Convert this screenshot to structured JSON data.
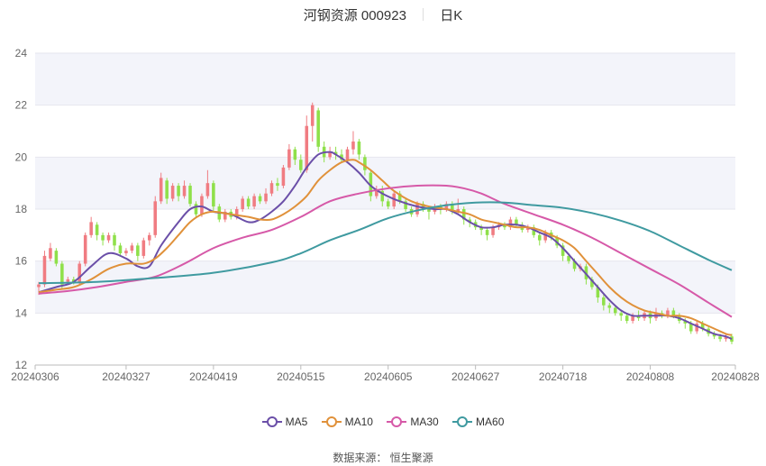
{
  "title": {
    "stock": "河钢资源 000923",
    "period": "日K"
  },
  "source": "数据来源： 恒生聚源",
  "colors": {
    "up": "#f07c82",
    "down": "#8fe04a",
    "ma5": "#6b4fa8",
    "ma10": "#e0913a",
    "ma30": "#d659a8",
    "ma60": "#3f9aa0",
    "plot_bg": "#f3f4fa"
  },
  "chart_data": {
    "type": "candlestick",
    "x_tick_labels": [
      "20240306",
      "20240327",
      "20240419",
      "20240515",
      "20240605",
      "20240627",
      "20240718",
      "20240808",
      "20240828"
    ],
    "x_tick_index": [
      0,
      15,
      30,
      45,
      60,
      75,
      90,
      105,
      119
    ],
    "n_days": 120,
    "ylim": [
      12,
      24
    ],
    "y_ticks": [
      12,
      14,
      16,
      18,
      20,
      22,
      24
    ],
    "legend": [
      "MA5",
      "MA10",
      "MA30",
      "MA60"
    ],
    "candles": [
      [
        15.0,
        15.1,
        14.7,
        15.2
      ],
      [
        15.1,
        16.2,
        15.0,
        16.4
      ],
      [
        16.1,
        16.5,
        16.0,
        16.7
      ],
      [
        16.4,
        15.9,
        15.8,
        16.5
      ],
      [
        15.9,
        15.1,
        14.9,
        16.0
      ],
      [
        15.2,
        15.3,
        15.1,
        15.4
      ],
      [
        15.3,
        15.2,
        15.1,
        15.4
      ],
      [
        15.2,
        15.9,
        15.1,
        16.0
      ],
      [
        15.9,
        17.0,
        15.8,
        17.1
      ],
      [
        17.0,
        17.5,
        16.9,
        17.7
      ],
      [
        17.4,
        17.0,
        16.8,
        17.5
      ],
      [
        17.0,
        16.8,
        16.6,
        17.1
      ],
      [
        16.8,
        17.0,
        16.7,
        17.1
      ],
      [
        17.0,
        16.6,
        16.4,
        17.1
      ],
      [
        16.6,
        16.3,
        16.2,
        16.7
      ],
      [
        16.3,
        16.4,
        16.2,
        16.5
      ],
      [
        16.4,
        16.6,
        16.3,
        16.7
      ],
      [
        16.6,
        16.2,
        16.0,
        16.7
      ],
      [
        16.2,
        16.8,
        16.1,
        16.9
      ],
      [
        16.8,
        17.0,
        16.6,
        17.1
      ],
      [
        17.0,
        18.3,
        16.9,
        18.5
      ],
      [
        18.3,
        19.2,
        18.2,
        19.4
      ],
      [
        19.1,
        18.4,
        18.2,
        19.2
      ],
      [
        18.4,
        18.9,
        18.3,
        19.0
      ],
      [
        18.9,
        18.5,
        18.3,
        19.0
      ],
      [
        18.5,
        18.9,
        18.4,
        19.1
      ],
      [
        18.9,
        18.2,
        18.1,
        19.0
      ],
      [
        18.2,
        17.8,
        17.7,
        18.3
      ],
      [
        17.8,
        18.5,
        17.7,
        18.6
      ],
      [
        18.5,
        19.0,
        18.4,
        19.5
      ],
      [
        19.0,
        18.1,
        17.9,
        19.1
      ],
      [
        18.1,
        17.6,
        17.5,
        18.2
      ],
      [
        17.6,
        17.9,
        17.5,
        18.0
      ],
      [
        17.9,
        17.7,
        17.6,
        18.0
      ],
      [
        17.7,
        18.0,
        17.6,
        18.1
      ],
      [
        18.0,
        18.4,
        17.9,
        18.5
      ],
      [
        18.4,
        18.1,
        18.0,
        18.5
      ],
      [
        18.1,
        18.5,
        18.0,
        18.6
      ],
      [
        18.5,
        18.3,
        18.2,
        18.6
      ],
      [
        18.3,
        18.6,
        18.2,
        18.8
      ],
      [
        18.6,
        19.0,
        18.5,
        19.1
      ],
      [
        19.0,
        18.9,
        18.7,
        19.2
      ],
      [
        18.9,
        19.6,
        18.8,
        19.7
      ],
      [
        19.6,
        20.3,
        19.5,
        20.5
      ],
      [
        20.3,
        19.9,
        19.7,
        20.4
      ],
      [
        19.9,
        19.5,
        19.4,
        20.1
      ],
      [
        19.5,
        21.2,
        19.4,
        21.6
      ],
      [
        21.2,
        22.0,
        20.6,
        22.1
      ],
      [
        21.8,
        20.4,
        20.2,
        21.9
      ],
      [
        20.4,
        20.0,
        19.8,
        20.6
      ],
      [
        20.0,
        20.2,
        19.9,
        20.4
      ],
      [
        20.2,
        20.1,
        19.9,
        20.4
      ],
      [
        20.1,
        19.9,
        19.8,
        20.3
      ],
      [
        19.9,
        20.3,
        19.8,
        20.4
      ],
      [
        20.3,
        20.6,
        20.1,
        21.0
      ],
      [
        20.6,
        20.1,
        19.9,
        20.7
      ],
      [
        20.0,
        19.5,
        19.3,
        20.1
      ],
      [
        19.4,
        18.5,
        18.3,
        19.5
      ],
      [
        18.5,
        18.7,
        18.4,
        18.9
      ],
      [
        18.7,
        18.3,
        18.1,
        18.9
      ],
      [
        18.3,
        18.1,
        18.0,
        18.4
      ],
      [
        18.1,
        18.6,
        18.0,
        18.7
      ],
      [
        18.6,
        18.3,
        18.2,
        18.7
      ],
      [
        18.3,
        18.0,
        17.9,
        18.4
      ],
      [
        18.0,
        17.8,
        17.7,
        18.1
      ],
      [
        17.8,
        18.2,
        17.7,
        18.3
      ],
      [
        18.2,
        18.0,
        17.9,
        18.3
      ],
      [
        18.0,
        17.9,
        17.6,
        18.1
      ],
      [
        17.9,
        18.1,
        17.8,
        18.2
      ],
      [
        18.1,
        18.0,
        17.8,
        18.2
      ],
      [
        18.0,
        18.2,
        17.9,
        18.3
      ],
      [
        18.2,
        17.9,
        17.8,
        18.3
      ],
      [
        17.9,
        18.0,
        17.8,
        18.4
      ],
      [
        18.0,
        17.6,
        17.4,
        18.1
      ],
      [
        17.6,
        17.5,
        17.3,
        17.7
      ],
      [
        17.5,
        17.3,
        17.2,
        17.6
      ],
      [
        17.3,
        17.2,
        17.0,
        17.4
      ],
      [
        17.2,
        17.0,
        16.8,
        17.3
      ],
      [
        17.0,
        17.3,
        16.9,
        17.4
      ],
      [
        17.3,
        17.4,
        17.2,
        17.5
      ],
      [
        17.4,
        17.3,
        17.2,
        17.5
      ],
      [
        17.3,
        17.6,
        17.2,
        17.7
      ],
      [
        17.6,
        17.4,
        17.3,
        17.7
      ],
      [
        17.4,
        17.2,
        17.1,
        17.5
      ],
      [
        17.2,
        17.3,
        17.1,
        17.4
      ],
      [
        17.3,
        17.0,
        16.9,
        17.4
      ],
      [
        17.0,
        16.8,
        16.6,
        17.1
      ],
      [
        16.8,
        17.1,
        16.7,
        17.2
      ],
      [
        17.1,
        16.9,
        16.8,
        17.2
      ],
      [
        16.9,
        16.6,
        16.5,
        17.0
      ],
      [
        16.6,
        16.2,
        16.0,
        16.7
      ],
      [
        16.2,
        16.0,
        15.9,
        16.3
      ],
      [
        16.0,
        15.7,
        15.6,
        16.1
      ],
      [
        15.7,
        15.8,
        15.6,
        15.9
      ],
      [
        15.8,
        15.3,
        15.1,
        15.9
      ],
      [
        15.3,
        15.0,
        14.9,
        15.4
      ],
      [
        15.0,
        14.6,
        14.4,
        15.1
      ],
      [
        14.6,
        14.3,
        14.1,
        14.7
      ],
      [
        14.3,
        14.2,
        14.0,
        14.4
      ],
      [
        14.2,
        14.0,
        13.9,
        14.3
      ],
      [
        14.0,
        13.9,
        13.7,
        14.1
      ],
      [
        13.9,
        13.7,
        13.6,
        14.0
      ],
      [
        13.7,
        13.9,
        13.6,
        14.0
      ],
      [
        13.9,
        13.8,
        13.7,
        14.1
      ],
      [
        13.8,
        14.0,
        13.7,
        14.1
      ],
      [
        14.0,
        13.8,
        13.6,
        14.1
      ],
      [
        13.8,
        14.0,
        13.7,
        14.2
      ],
      [
        14.0,
        13.9,
        13.8,
        14.1
      ],
      [
        13.9,
        14.1,
        13.8,
        14.2
      ],
      [
        14.1,
        13.9,
        13.8,
        14.2
      ],
      [
        13.9,
        13.7,
        13.6,
        14.0
      ],
      [
        13.7,
        13.6,
        13.4,
        13.8
      ],
      [
        13.6,
        13.3,
        13.2,
        13.7
      ],
      [
        13.3,
        13.6,
        13.2,
        13.7
      ],
      [
        13.6,
        13.4,
        13.3,
        13.7
      ],
      [
        13.4,
        13.2,
        13.1,
        13.5
      ],
      [
        13.2,
        13.1,
        13.0,
        13.3
      ],
      [
        13.1,
        13.0,
        12.9,
        13.2
      ],
      [
        13.0,
        13.1,
        12.9,
        13.2
      ],
      [
        13.1,
        12.9,
        12.8,
        13.2
      ]
    ],
    "ma_series": [
      {
        "name": "MA5",
        "color": "#6b4fa8",
        "values": [
          [
            0,
            14.8
          ],
          [
            3,
            15.0
          ],
          [
            6,
            15.2
          ],
          [
            9,
            15.8
          ],
          [
            12,
            16.3
          ],
          [
            15,
            16.1
          ],
          [
            17,
            15.8
          ],
          [
            19,
            15.8
          ],
          [
            21,
            16.6
          ],
          [
            24,
            17.5
          ],
          [
            26,
            18.0
          ],
          [
            28,
            18.1
          ],
          [
            30,
            17.9
          ],
          [
            33,
            17.8
          ],
          [
            36,
            17.5
          ],
          [
            38,
            17.6
          ],
          [
            40,
            17.9
          ],
          [
            42,
            18.3
          ],
          [
            44,
            18.9
          ],
          [
            46,
            19.6
          ],
          [
            48,
            20.1
          ],
          [
            50,
            20.2
          ],
          [
            51,
            20.1
          ],
          [
            53,
            19.8
          ],
          [
            55,
            19.4
          ],
          [
            57,
            18.9
          ],
          [
            59,
            18.6
          ],
          [
            62,
            18.3
          ],
          [
            65,
            18.1
          ],
          [
            68,
            18.0
          ],
          [
            70,
            18.0
          ],
          [
            72,
            17.8
          ],
          [
            74,
            17.5
          ],
          [
            76,
            17.3
          ],
          [
            78,
            17.3
          ],
          [
            80,
            17.4
          ],
          [
            82,
            17.4
          ],
          [
            84,
            17.3
          ],
          [
            86,
            17.1
          ],
          [
            88,
            16.9
          ],
          [
            90,
            16.5
          ],
          [
            92,
            16.0
          ],
          [
            94,
            15.5
          ],
          [
            96,
            15.0
          ],
          [
            98,
            14.5
          ],
          [
            100,
            14.1
          ],
          [
            102,
            13.9
          ],
          [
            104,
            13.9
          ],
          [
            106,
            13.9
          ],
          [
            108,
            13.9
          ],
          [
            110,
            13.8
          ],
          [
            112,
            13.6
          ],
          [
            114,
            13.4
          ],
          [
            116,
            13.2
          ],
          [
            118,
            13.1
          ],
          [
            119,
            13.0
          ]
        ]
      },
      {
        "name": "MA10",
        "color": "#e0913a",
        "values": [
          [
            0,
            14.8
          ],
          [
            3,
            14.9
          ],
          [
            6,
            15.0
          ],
          [
            9,
            15.3
          ],
          [
            12,
            15.7
          ],
          [
            15,
            15.9
          ],
          [
            18,
            15.9
          ],
          [
            20,
            16.1
          ],
          [
            22,
            16.5
          ],
          [
            24,
            17.0
          ],
          [
            26,
            17.5
          ],
          [
            28,
            17.8
          ],
          [
            30,
            17.9
          ],
          [
            33,
            17.8
          ],
          [
            36,
            17.7
          ],
          [
            38,
            17.6
          ],
          [
            40,
            17.6
          ],
          [
            42,
            17.8
          ],
          [
            44,
            18.1
          ],
          [
            46,
            18.5
          ],
          [
            48,
            19.1
          ],
          [
            50,
            19.5
          ],
          [
            52,
            19.8
          ],
          [
            54,
            19.9
          ],
          [
            55,
            19.8
          ],
          [
            57,
            19.5
          ],
          [
            59,
            19.1
          ],
          [
            61,
            18.7
          ],
          [
            64,
            18.3
          ],
          [
            67,
            18.1
          ],
          [
            70,
            18.0
          ],
          [
            72,
            17.9
          ],
          [
            74,
            17.8
          ],
          [
            76,
            17.6
          ],
          [
            78,
            17.5
          ],
          [
            80,
            17.4
          ],
          [
            82,
            17.3
          ],
          [
            84,
            17.3
          ],
          [
            86,
            17.2
          ],
          [
            88,
            17.0
          ],
          [
            90,
            16.8
          ],
          [
            92,
            16.5
          ],
          [
            94,
            16.0
          ],
          [
            96,
            15.5
          ],
          [
            98,
            15.0
          ],
          [
            100,
            14.6
          ],
          [
            102,
            14.3
          ],
          [
            104,
            14.1
          ],
          [
            106,
            14.0
          ],
          [
            108,
            13.9
          ],
          [
            110,
            13.9
          ],
          [
            112,
            13.8
          ],
          [
            114,
            13.6
          ],
          [
            116,
            13.4
          ],
          [
            118,
            13.2
          ],
          [
            119,
            13.15
          ]
        ]
      },
      {
        "name": "MA30",
        "color": "#d659a8",
        "values": [
          [
            0,
            14.75
          ],
          [
            5,
            14.85
          ],
          [
            10,
            15.0
          ],
          [
            15,
            15.2
          ],
          [
            20,
            15.4
          ],
          [
            25,
            15.9
          ],
          [
            30,
            16.5
          ],
          [
            35,
            16.9
          ],
          [
            40,
            17.2
          ],
          [
            45,
            17.7
          ],
          [
            50,
            18.3
          ],
          [
            55,
            18.6
          ],
          [
            60,
            18.8
          ],
          [
            65,
            18.9
          ],
          [
            70,
            18.9
          ],
          [
            73,
            18.8
          ],
          [
            76,
            18.6
          ],
          [
            80,
            18.2
          ],
          [
            85,
            17.8
          ],
          [
            90,
            17.4
          ],
          [
            95,
            16.9
          ],
          [
            100,
            16.3
          ],
          [
            105,
            15.7
          ],
          [
            110,
            15.1
          ],
          [
            115,
            14.4
          ],
          [
            119,
            13.85
          ]
        ]
      },
      {
        "name": "MA60",
        "color": "#3f9aa0",
        "values": [
          [
            0,
            15.15
          ],
          [
            10,
            15.2
          ],
          [
            20,
            15.35
          ],
          [
            30,
            15.55
          ],
          [
            40,
            15.95
          ],
          [
            45,
            16.3
          ],
          [
            50,
            16.8
          ],
          [
            55,
            17.2
          ],
          [
            60,
            17.65
          ],
          [
            65,
            17.95
          ],
          [
            70,
            18.15
          ],
          [
            75,
            18.25
          ],
          [
            80,
            18.25
          ],
          [
            85,
            18.15
          ],
          [
            90,
            18.05
          ],
          [
            95,
            17.85
          ],
          [
            100,
            17.55
          ],
          [
            105,
            17.15
          ],
          [
            110,
            16.6
          ],
          [
            115,
            16.05
          ],
          [
            119,
            15.65
          ]
        ]
      }
    ]
  }
}
